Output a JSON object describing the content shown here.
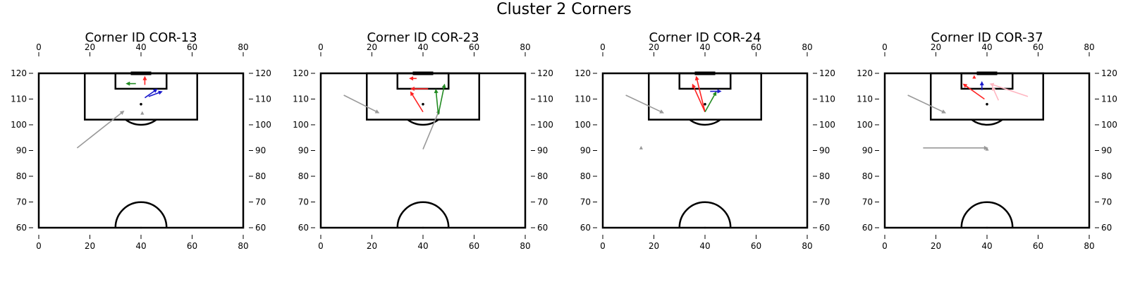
{
  "suptitle": "Cluster 2 Corners",
  "chart_data": [
    {
      "type": "scatter",
      "title": "Corner ID COR-13",
      "xlim": [
        0,
        80
      ],
      "ylim": [
        57,
        122
      ],
      "xticks": [
        0,
        20,
        40,
        60,
        80
      ],
      "yticks": [
        60,
        70,
        80,
        90,
        100,
        110,
        120
      ],
      "ball": [
        40,
        108
      ],
      "arrows": [
        {
          "color": "#999999",
          "from": [
            15,
            91
          ],
          "to": [
            33.5,
            105.5
          ]
        },
        {
          "color": "#ff2222",
          "from": [
            41.5,
            115.5
          ],
          "to": [
            41.5,
            119
          ]
        },
        {
          "color": "#228B22",
          "from": [
            38,
            116
          ],
          "to": [
            34,
            116
          ]
        },
        {
          "color": "#1a1acc",
          "from": [
            41.5,
            110.5
          ],
          "to": [
            46.5,
            114
          ]
        },
        {
          "color": "#1a1acc",
          "from": [
            43,
            111
          ],
          "to": [
            48.5,
            113
          ]
        }
      ],
      "markers": [
        {
          "color": "#999999",
          "pos": [
            40.5,
            104.5
          ]
        }
      ]
    },
    {
      "type": "scatter",
      "title": "Corner ID COR-23",
      "xlim": [
        0,
        80
      ],
      "ylim": [
        57,
        122
      ],
      "xticks": [
        0,
        20,
        40,
        60,
        80
      ],
      "yticks": [
        60,
        70,
        80,
        90,
        100,
        110,
        120
      ],
      "ball": [
        40,
        108
      ],
      "arrows": [
        {
          "color": "#999999",
          "from": [
            9,
            111.5
          ],
          "to": [
            23,
            104.5
          ]
        },
        {
          "color": "#999999",
          "from": [
            40,
            90.5
          ],
          "to": [
            46.5,
            106
          ]
        },
        {
          "color": "#ff2222",
          "from": [
            37.5,
            118
          ],
          "to": [
            34.5,
            118
          ]
        },
        {
          "color": "#ff2222",
          "from": [
            42,
            114
          ],
          "to": [
            35,
            114
          ]
        },
        {
          "color": "#ff2222",
          "from": [
            40,
            105
          ],
          "to": [
            35,
            113
          ]
        },
        {
          "color": "#228B22",
          "from": [
            46,
            104
          ],
          "to": [
            45,
            114
          ]
        },
        {
          "color": "#228B22",
          "from": [
            46,
            104
          ],
          "to": [
            48.5,
            116
          ]
        }
      ],
      "markers": []
    },
    {
      "type": "scatter",
      "title": "Corner ID COR-24",
      "xlim": [
        0,
        80
      ],
      "ylim": [
        57,
        122
      ],
      "xticks": [
        0,
        20,
        40,
        60,
        80
      ],
      "yticks": [
        60,
        70,
        80,
        90,
        100,
        110,
        120
      ],
      "ball": [
        40,
        108
      ],
      "arrows": [
        {
          "color": "#999999",
          "from": [
            9,
            111.5
          ],
          "to": [
            24,
            104.5
          ]
        },
        {
          "color": "#ff2222",
          "from": [
            40,
            105
          ],
          "to": [
            36.5,
            119
          ]
        },
        {
          "color": "#ff2222",
          "from": [
            40,
            105
          ],
          "to": [
            35,
            116
          ]
        },
        {
          "color": "#228B22",
          "from": [
            40,
            105
          ],
          "to": [
            44.5,
            113
          ]
        },
        {
          "color": "#1a1acc",
          "from": [
            42,
            113
          ],
          "to": [
            46.5,
            113
          ]
        }
      ],
      "markers": [
        {
          "color": "#999999",
          "pos": [
            15,
            91
          ]
        }
      ]
    },
    {
      "type": "scatter",
      "title": "Corner ID COR-37",
      "xlim": [
        0,
        80
      ],
      "ylim": [
        57,
        122
      ],
      "xticks": [
        0,
        20,
        40,
        60,
        80
      ],
      "yticks": [
        60,
        70,
        80,
        90,
        100,
        110,
        120
      ],
      "ball": [
        40,
        108
      ],
      "arrows": [
        {
          "color": "#999999",
          "from": [
            9,
            111.5
          ],
          "to": [
            24,
            104.5
          ]
        },
        {
          "color": "#999999",
          "from": [
            15,
            91
          ],
          "to": [
            40.5,
            91
          ]
        },
        {
          "color": "#ff2222",
          "from": [
            39,
            110
          ],
          "to": [
            30.5,
            116
          ]
        },
        {
          "color": "#1a1acc",
          "from": [
            38,
            113.5
          ],
          "to": [
            38,
            117
          ]
        },
        {
          "color": "#ffb6c1",
          "from": [
            56,
            111
          ],
          "to": [
            41,
            116
          ]
        },
        {
          "color": "#ffb6c1",
          "from": [
            44.5,
            109.5
          ],
          "to": [
            42,
            115
          ]
        }
      ],
      "markers": [
        {
          "color": "#ff2222",
          "pos": [
            35,
            118.5
          ]
        },
        {
          "color": "#999999",
          "pos": [
            40,
            90.5
          ]
        }
      ]
    }
  ]
}
